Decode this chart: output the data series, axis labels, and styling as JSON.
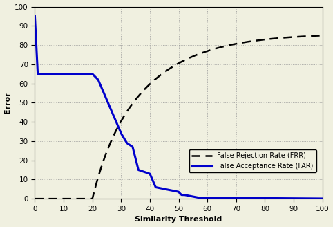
{
  "title": "",
  "xlabel": "Similarity Threshold",
  "ylabel": "Error",
  "xlim": [
    0,
    100
  ],
  "ylim": [
    0,
    100
  ],
  "xticks": [
    0,
    10,
    20,
    30,
    40,
    50,
    60,
    70,
    80,
    90,
    100
  ],
  "yticks": [
    0,
    10,
    20,
    30,
    40,
    50,
    60,
    70,
    80,
    90,
    100
  ],
  "frr_color": "#000000",
  "far_color": "#0000cc",
  "legend_labels": [
    "False Rejection Rate (FRR)",
    "False Acceptance Rate (FAR)"
  ],
  "background_color": "#f0f0e0",
  "grid_color": "#999999"
}
